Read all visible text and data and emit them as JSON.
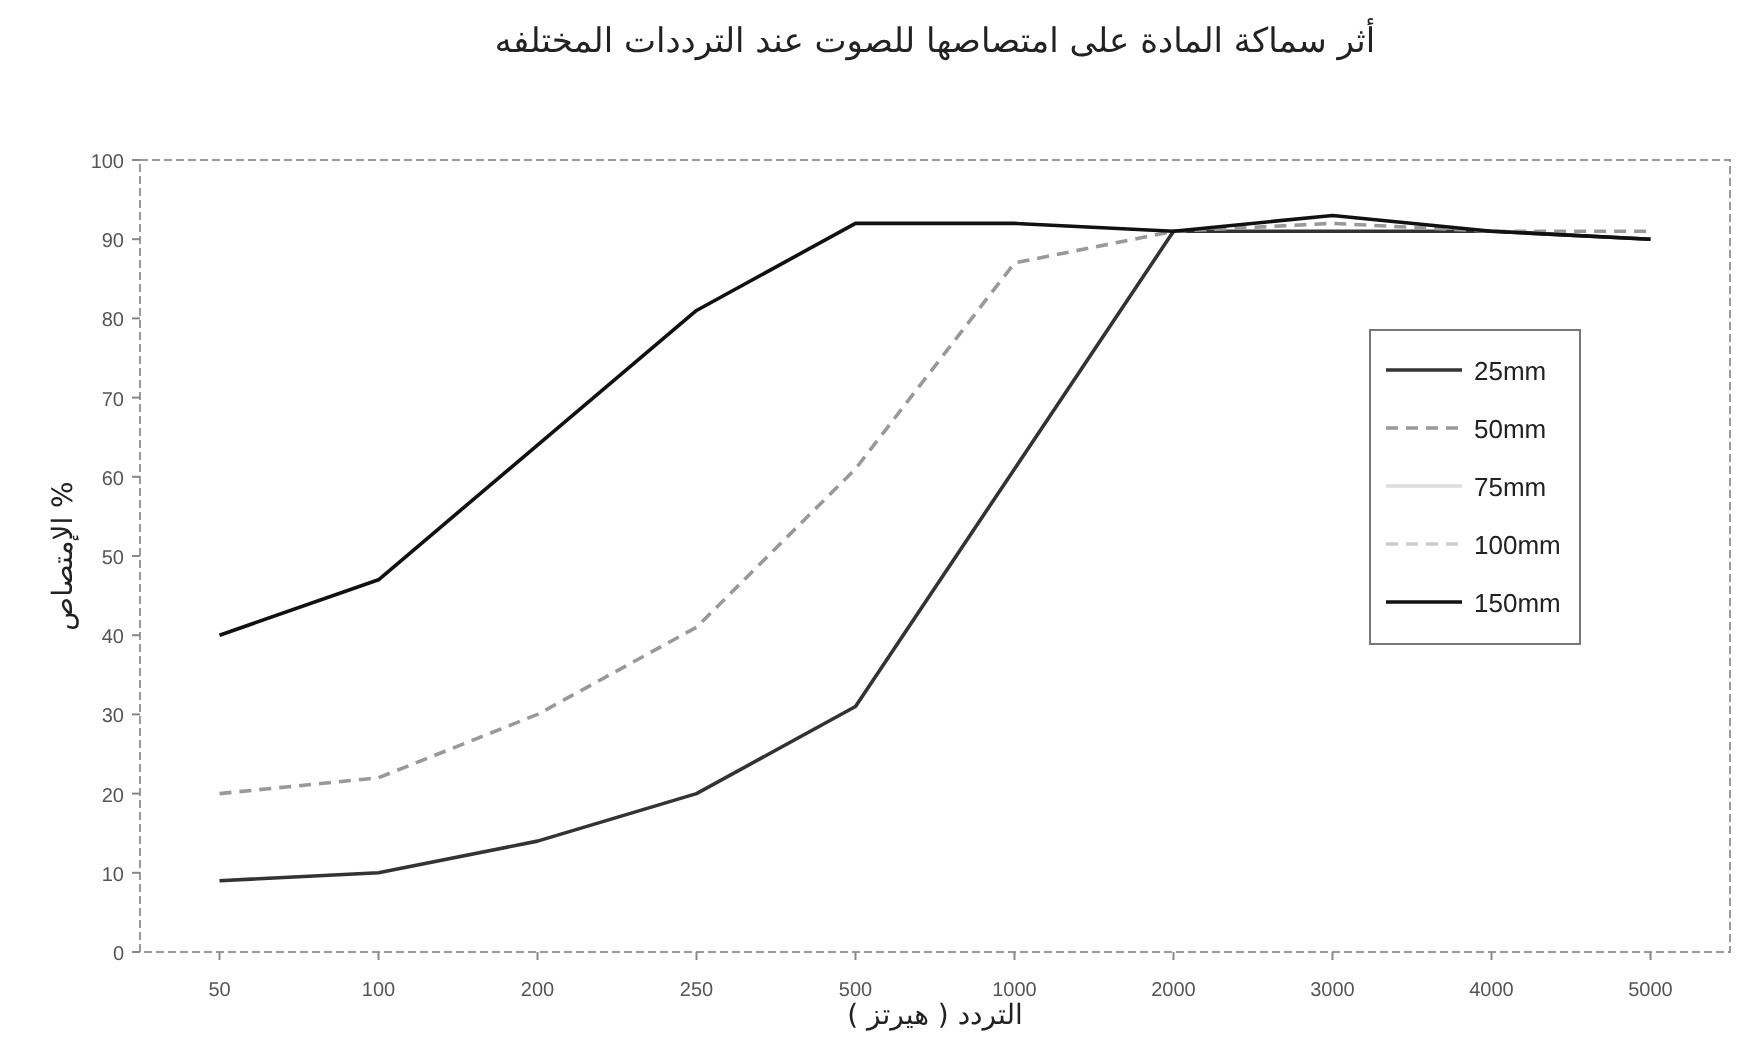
{
  "chart_data": {
    "type": "line",
    "title": "أثر سماكة المادة على امتصاصها للصوت عند الترددات المختلفه",
    "xlabel": "التردد ( هيرتز )",
    "ylabel": "الإمتصاص %",
    "categories": [
      "50",
      "100",
      "200",
      "250",
      "500",
      "1000",
      "2000",
      "3000",
      "4000",
      "5000"
    ],
    "series": [
      {
        "name": "25mm",
        "color": "#333333",
        "values": [
          9,
          10,
          14,
          20,
          31,
          61,
          91,
          91,
          91,
          90
        ]
      },
      {
        "name": "50mm",
        "color": "#999999",
        "line_style": "dashed",
        "values": [
          20,
          22,
          30,
          41,
          61,
          87,
          91,
          92,
          91,
          91
        ]
      },
      {
        "name": "75mm",
        "color": "#dddddd",
        "values": [
          null,
          null,
          null,
          null,
          null,
          null,
          null,
          null,
          null,
          null
        ]
      },
      {
        "name": "100mm",
        "color": "#cccccc",
        "line_style": "dashed",
        "values": [
          null,
          null,
          null,
          null,
          null,
          null,
          null,
          null,
          null,
          null
        ]
      },
      {
        "name": "150mm",
        "color": "#111111",
        "values": [
          40,
          47,
          64,
          81,
          92,
          92,
          91,
          93,
          91,
          90
        ]
      }
    ],
    "ylim": [
      0,
      100
    ],
    "yticks": [
      0,
      10,
      20,
      30,
      40,
      50,
      60,
      70,
      80,
      90,
      100
    ],
    "grid": false,
    "legend": "right",
    "marker": "none"
  }
}
